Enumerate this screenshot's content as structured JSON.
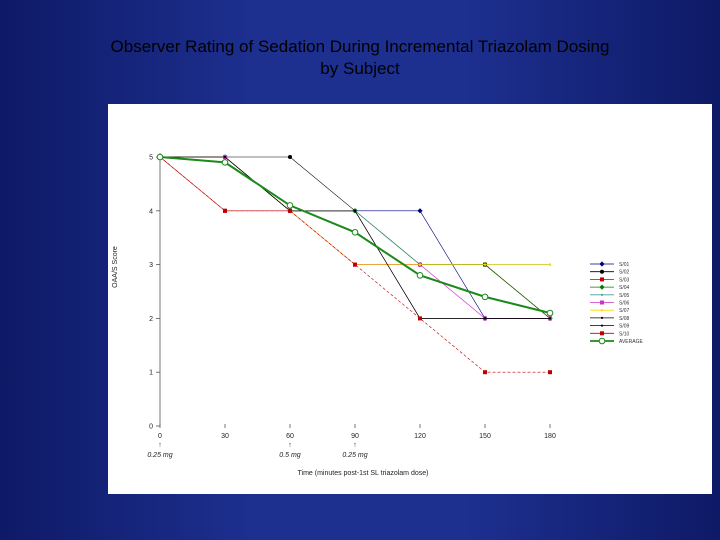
{
  "slide": {
    "title_line1": "Observer Rating of Sedation During Incremental Triazolam Dosing",
    "title_line2": "by Subject"
  },
  "chart_data": {
    "type": "line",
    "title": "Observer Rating of Sedation During Incremental Triazolam Dosing by Subject",
    "xlabel": "Time (minutes post-1st SL triazolam dose)",
    "ylabel": "OAA/S Score",
    "x": [
      0,
      30,
      60,
      90,
      120,
      150,
      180
    ],
    "xlim": [
      0,
      180
    ],
    "ylim": [
      0,
      5
    ],
    "x_ticks": [
      0,
      30,
      60,
      90,
      120,
      150,
      180
    ],
    "y_ticks": [
      0,
      1,
      2,
      3,
      4,
      5
    ],
    "dose_annotations": [
      {
        "x": 0,
        "label": "0.25 mg"
      },
      {
        "x": 60,
        "label": "0.5 mg"
      },
      {
        "x": 90,
        "label": "0.25 mg"
      }
    ],
    "legend_position": "right",
    "series": [
      {
        "name": "S/01",
        "color": "#000080",
        "marker": "diamond",
        "values": [
          5,
          5,
          4,
          4,
          4,
          2,
          2
        ]
      },
      {
        "name": "S/02",
        "color": "#000000",
        "marker": "circle",
        "values": [
          5,
          5,
          5,
          4,
          3,
          3,
          2
        ]
      },
      {
        "name": "S/03",
        "color": "#c00000",
        "marker": "square",
        "values": [
          5,
          4,
          4,
          3,
          3,
          3,
          2
        ]
      },
      {
        "name": "S/04",
        "color": "#008000",
        "marker": "diamond",
        "values": [
          5,
          5,
          4,
          4,
          3,
          3,
          2
        ]
      },
      {
        "name": "S/05",
        "color": "#4a9a9a",
        "marker": "none",
        "values": [
          5,
          5,
          4,
          4,
          3,
          3,
          3
        ]
      },
      {
        "name": "S/06",
        "color": "#cc33cc",
        "marker": "square",
        "values": [
          5,
          5,
          4,
          3,
          3,
          2,
          2
        ]
      },
      {
        "name": "S/07",
        "color": "#ffd700",
        "marker": "none",
        "values": [
          5,
          5,
          4,
          3,
          3,
          3,
          3
        ]
      },
      {
        "name": "S/08",
        "color": "#000000",
        "marker": "none",
        "values": [
          5,
          5,
          4,
          4,
          2,
          2,
          2
        ]
      },
      {
        "name": "S/09",
        "color": "#000000",
        "marker": "none",
        "values": [
          5,
          5,
          4,
          4,
          2,
          2,
          2
        ]
      },
      {
        "name": "S/10",
        "color": "#c00000",
        "marker": "square",
        "values": [
          5,
          4,
          4,
          3,
          2,
          1,
          1
        ]
      },
      {
        "name": "AVERAGE",
        "color": "#1a8a1a",
        "marker": "open-circle",
        "values": [
          5,
          4.9,
          4.1,
          3.6,
          2.8,
          2.4,
          2.1
        ]
      }
    ]
  }
}
